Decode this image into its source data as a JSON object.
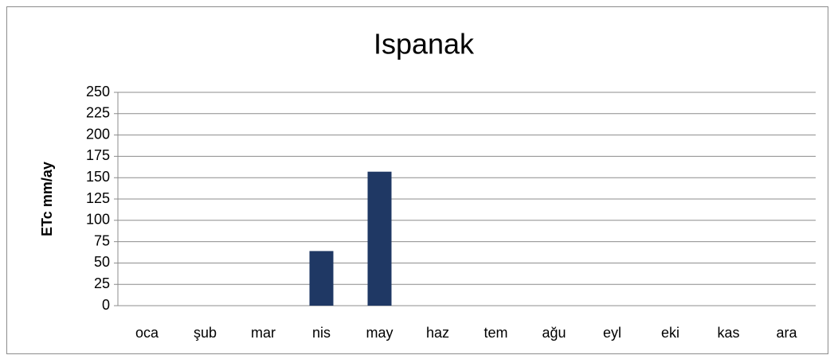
{
  "chart_data": {
    "type": "bar",
    "title": "Ispanak",
    "y_label": "ETc mm/ay",
    "categories": [
      "oca",
      "şub",
      "mar",
      "nis",
      "may",
      "haz",
      "tem",
      "ağu",
      "eyl",
      "eki",
      "kas",
      "ara"
    ],
    "values": [
      0,
      0,
      0,
      64,
      157,
      0,
      0,
      0,
      0,
      0,
      0,
      0
    ],
    "color": "#1f3864",
    "ylim": [
      0,
      250
    ],
    "yticks": [
      0,
      25,
      50,
      75,
      100,
      125,
      150,
      175,
      200,
      225,
      250
    ],
    "grid": true
  }
}
